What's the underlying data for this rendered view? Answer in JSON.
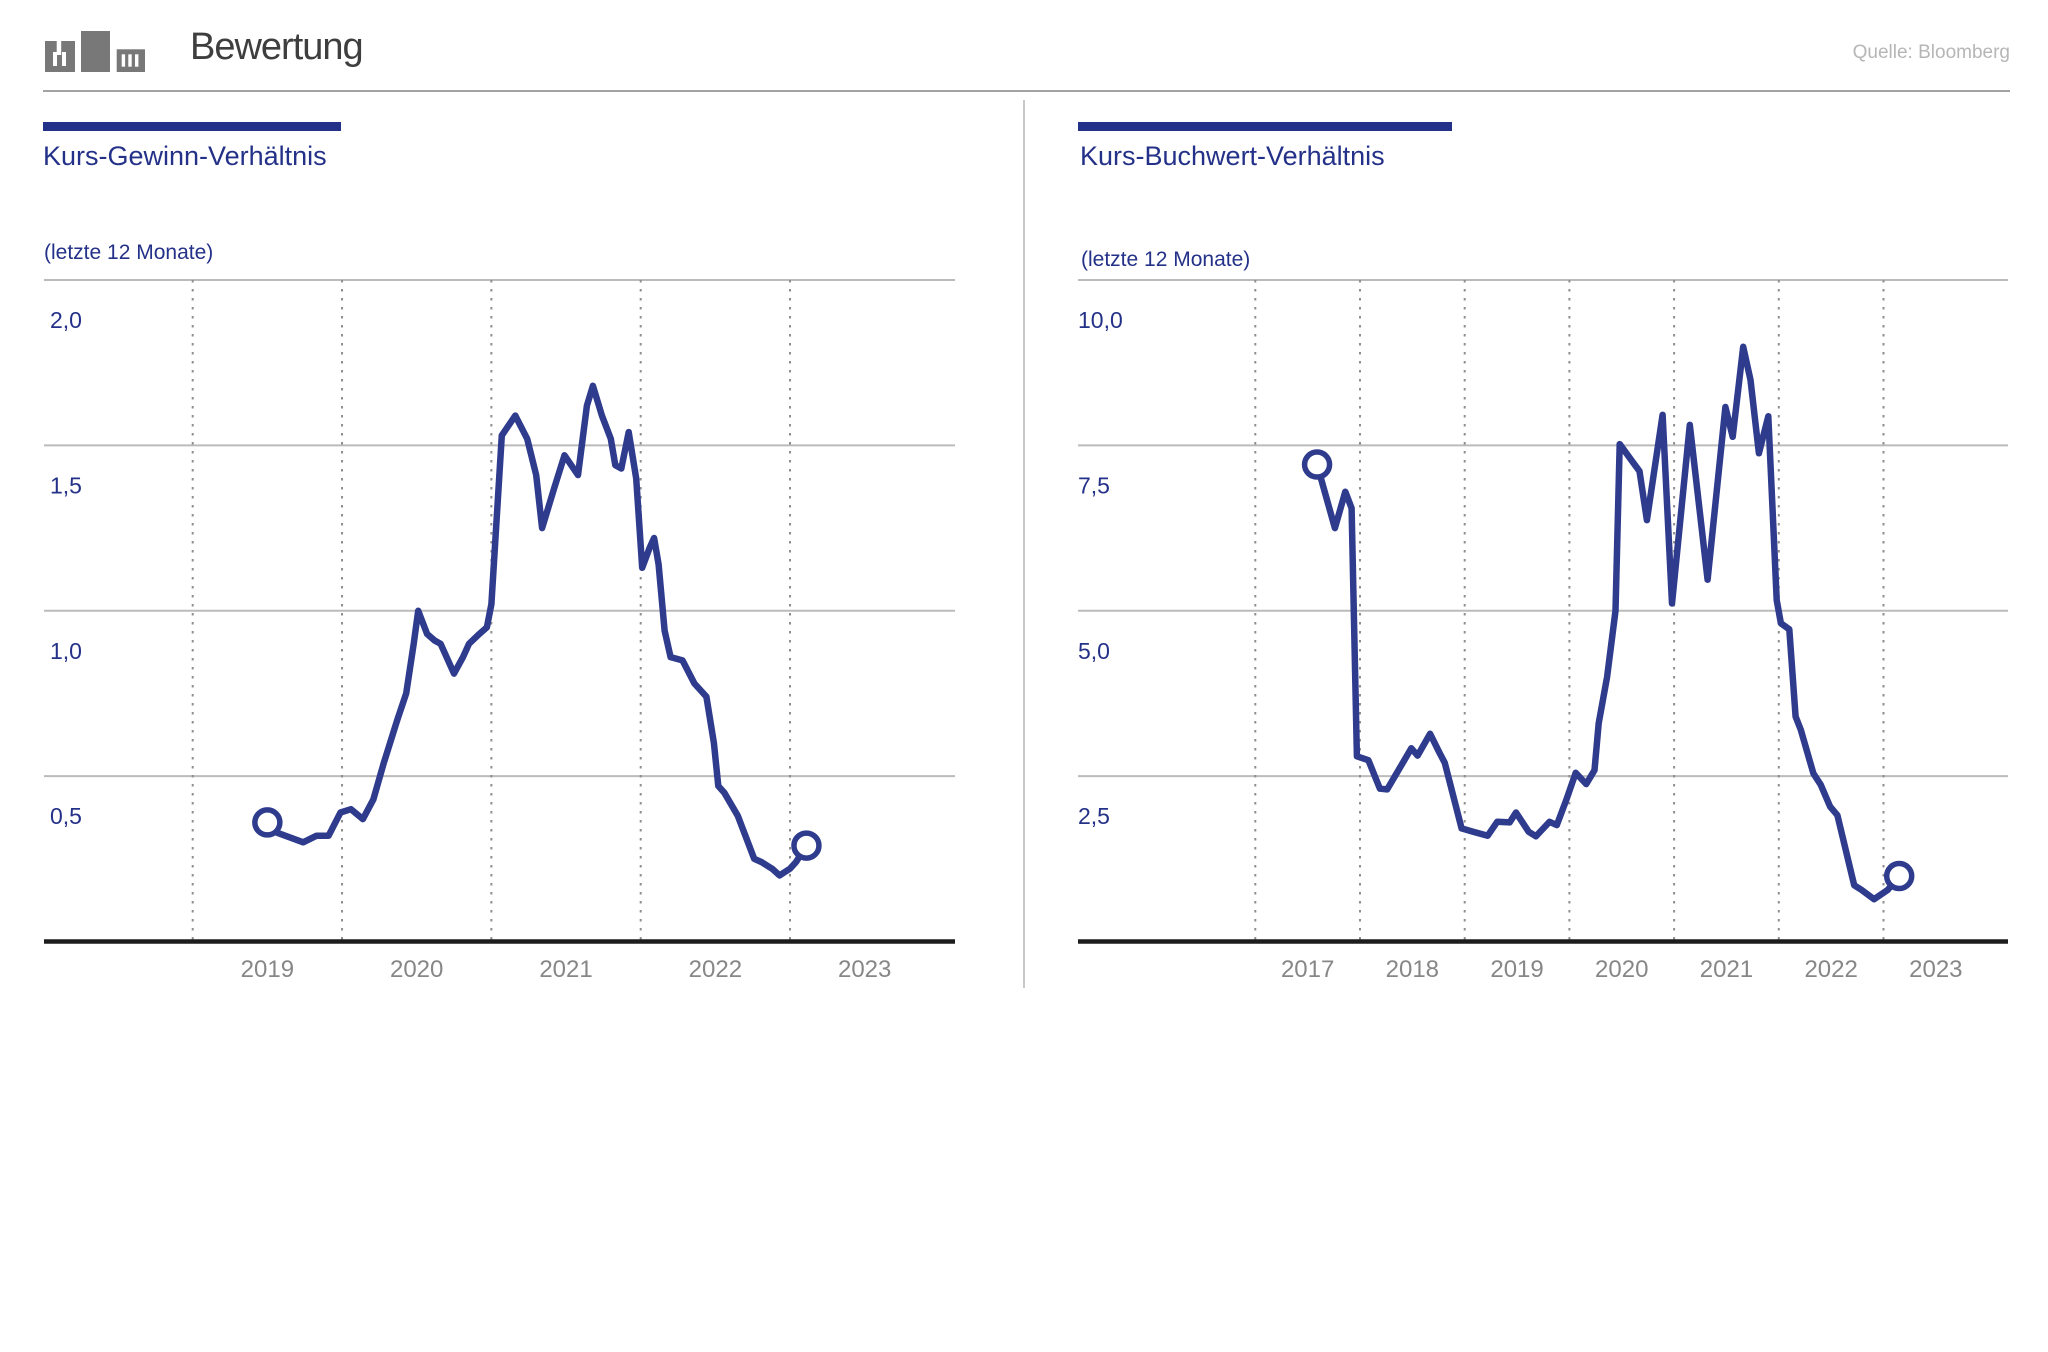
{
  "header": {
    "title": "Bewertung",
    "source": "Quelle: Bloomberg",
    "logo": "bar-buildings-icon"
  },
  "colors": {
    "navy-text": "#243188",
    "line": "#2f3c8e",
    "grid": "#bbbbbb",
    "dotted": "#8f8f8f",
    "axis": "#1d1d1d",
    "xtick": "#878787",
    "header": "#3e3e3e",
    "logo": "#787878",
    "rule": "#a3a3a3",
    "divider": "#c9c9c9",
    "source": "#b6b6b6"
  },
  "chart_data": [
    {
      "type": "line",
      "title": "Kurs-Gewinn-Verhältnis",
      "subtitle": "(letzte 12 Monate)",
      "ylim": [
        0,
        2.0
      ],
      "grid": "horizontal-solid, vertical-dotted-year-boundaries",
      "legend_position": "none",
      "y_ticks": [
        {
          "value": 2.0,
          "label": "2,0"
        },
        {
          "value": 1.5,
          "label": "1,5"
        },
        {
          "value": 1.0,
          "label": "1,0"
        },
        {
          "value": 0.5,
          "label": "0,5"
        }
      ],
      "x_ticks": [
        {
          "year": 2019,
          "label": "2019"
        },
        {
          "year": 2020,
          "label": "2020"
        },
        {
          "year": 2021,
          "label": "2021"
        },
        {
          "year": 2022,
          "label": "2022"
        },
        {
          "year": 2023,
          "label": "2023"
        }
      ],
      "series": [
        {
          "name": "Kurs-Gewinn-Verhältnis (letzte 12 Monate)",
          "start_marker": true,
          "end_marker": true,
          "points": [
            [
              2019.5,
              0.36
            ],
            [
              2019.56,
              0.33
            ],
            [
              2019.74,
              0.3
            ],
            [
              2019.83,
              0.32
            ],
            [
              2019.91,
              0.32
            ],
            [
              2019.99,
              0.39
            ],
            [
              2020.06,
              0.4
            ],
            [
              2020.14,
              0.37
            ],
            [
              2020.21,
              0.43
            ],
            [
              2020.28,
              0.54
            ],
            [
              2020.37,
              0.67
            ],
            [
              2020.43,
              0.75
            ],
            [
              2020.48,
              0.9
            ],
            [
              2020.51,
              1.0
            ],
            [
              2020.57,
              0.93
            ],
            [
              2020.62,
              0.91
            ],
            [
              2020.66,
              0.9
            ],
            [
              2020.75,
              0.81
            ],
            [
              2020.81,
              0.86
            ],
            [
              2020.85,
              0.9
            ],
            [
              2020.92,
              0.93
            ],
            [
              2020.97,
              0.95
            ],
            [
              2021.0,
              1.02
            ],
            [
              2021.07,
              1.53
            ],
            [
              2021.16,
              1.59
            ],
            [
              2021.24,
              1.52
            ],
            [
              2021.3,
              1.41
            ],
            [
              2021.34,
              1.25
            ],
            [
              2021.42,
              1.37
            ],
            [
              2021.49,
              1.47
            ],
            [
              2021.58,
              1.41
            ],
            [
              2021.64,
              1.62
            ],
            [
              2021.68,
              1.68
            ],
            [
              2021.74,
              1.59
            ],
            [
              2021.8,
              1.52
            ],
            [
              2021.83,
              1.44
            ],
            [
              2021.87,
              1.43
            ],
            [
              2021.92,
              1.54
            ],
            [
              2021.97,
              1.4
            ],
            [
              2022.01,
              1.13
            ],
            [
              2022.06,
              1.19
            ],
            [
              2022.09,
              1.22
            ],
            [
              2022.12,
              1.14
            ],
            [
              2022.16,
              0.94
            ],
            [
              2022.2,
              0.86
            ],
            [
              2022.28,
              0.85
            ],
            [
              2022.36,
              0.78
            ],
            [
              2022.44,
              0.74
            ],
            [
              2022.49,
              0.6
            ],
            [
              2022.52,
              0.47
            ],
            [
              2022.56,
              0.45
            ],
            [
              2022.65,
              0.38
            ],
            [
              2022.76,
              0.25
            ],
            [
              2022.81,
              0.24
            ],
            [
              2022.88,
              0.22
            ],
            [
              2022.93,
              0.2
            ],
            [
              2023.0,
              0.22
            ],
            [
              2023.04,
              0.24
            ],
            [
              2023.11,
              0.29
            ]
          ]
        }
      ]
    },
    {
      "type": "line",
      "title": "Kurs-Buchwert-Verhältnis",
      "subtitle": "(letzte 12 Monate)",
      "ylim": [
        0,
        10.0
      ],
      "grid": "horizontal-solid, vertical-dotted-year-boundaries",
      "legend_position": "none",
      "y_ticks": [
        {
          "value": 10.0,
          "label": "10,0"
        },
        {
          "value": 7.5,
          "label": "7,5"
        },
        {
          "value": 5.0,
          "label": "5,0"
        },
        {
          "value": 2.5,
          "label": "2,5"
        }
      ],
      "x_ticks": [
        {
          "year": 2017,
          "label": "2017"
        },
        {
          "year": 2018,
          "label": "2018"
        },
        {
          "year": 2019,
          "label": "2019"
        },
        {
          "year": 2020,
          "label": "2020"
        },
        {
          "year": 2021,
          "label": "2021"
        },
        {
          "year": 2022,
          "label": "2022"
        },
        {
          "year": 2023,
          "label": "2023"
        }
      ],
      "series": [
        {
          "name": "Kurs-Buchwert-Verhältnis (letzte 12 Monate)",
          "start_marker": true,
          "end_marker": true,
          "points": [
            [
              2017.59,
              7.21
            ],
            [
              2017.76,
              6.25
            ],
            [
              2017.86,
              6.8
            ],
            [
              2017.92,
              6.55
            ],
            [
              2017.97,
              2.8
            ],
            [
              2018.08,
              2.74
            ],
            [
              2018.19,
              2.31
            ],
            [
              2018.26,
              2.3
            ],
            [
              2018.49,
              2.92
            ],
            [
              2018.55,
              2.81
            ],
            [
              2018.67,
              3.14
            ],
            [
              2018.76,
              2.85
            ],
            [
              2018.81,
              2.7
            ],
            [
              2018.97,
              1.71
            ],
            [
              2019.08,
              1.66
            ],
            [
              2019.22,
              1.6
            ],
            [
              2019.31,
              1.81
            ],
            [
              2019.43,
              1.8
            ],
            [
              2019.49,
              1.95
            ],
            [
              2019.61,
              1.66
            ],
            [
              2019.68,
              1.59
            ],
            [
              2019.81,
              1.81
            ],
            [
              2019.88,
              1.76
            ],
            [
              2019.97,
              2.14
            ],
            [
              2020.06,
              2.55
            ],
            [
              2020.16,
              2.38
            ],
            [
              2020.24,
              2.59
            ],
            [
              2020.28,
              3.3
            ],
            [
              2020.36,
              4.0
            ],
            [
              2020.44,
              5.0
            ],
            [
              2020.48,
              7.52
            ],
            [
              2020.59,
              7.28
            ],
            [
              2020.67,
              7.11
            ],
            [
              2020.74,
              6.37
            ],
            [
              2020.89,
              7.96
            ],
            [
              2020.98,
              5.11
            ],
            [
              2021.15,
              7.81
            ],
            [
              2021.32,
              5.47
            ],
            [
              2021.49,
              8.08
            ],
            [
              2021.56,
              7.63
            ],
            [
              2021.66,
              8.99
            ],
            [
              2021.73,
              8.49
            ],
            [
              2021.81,
              7.38
            ],
            [
              2021.9,
              7.94
            ],
            [
              2021.98,
              5.16
            ],
            [
              2022.02,
              4.81
            ],
            [
              2022.1,
              4.72
            ],
            [
              2022.16,
              3.4
            ],
            [
              2022.21,
              3.2
            ],
            [
              2022.33,
              2.54
            ],
            [
              2022.4,
              2.37
            ],
            [
              2022.49,
              2.04
            ],
            [
              2022.56,
              1.91
            ],
            [
              2022.72,
              0.85
            ],
            [
              2022.79,
              0.78
            ],
            [
              2022.91,
              0.64
            ],
            [
              2023.04,
              0.78
            ],
            [
              2023.15,
              0.99
            ]
          ]
        }
      ]
    }
  ]
}
